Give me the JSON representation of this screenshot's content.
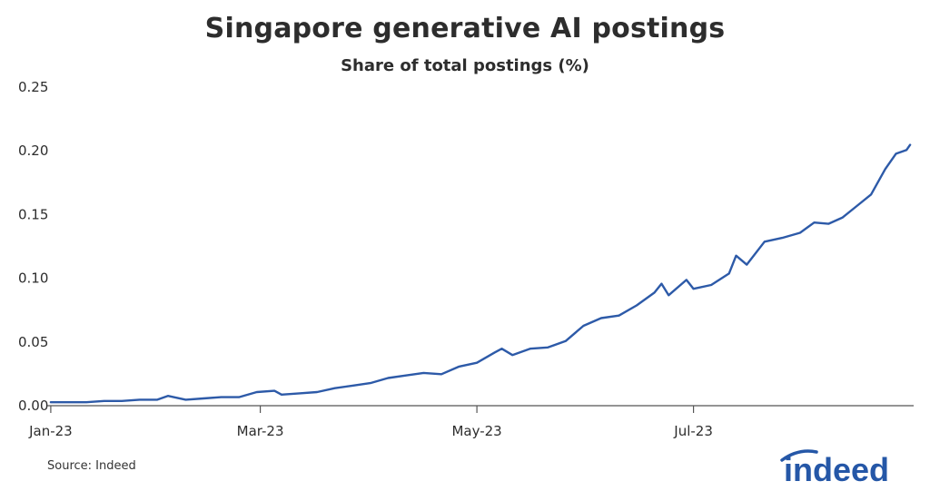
{
  "title": "Singapore generative AI postings",
  "subtitle": "Share of total postings (%)",
  "source": "Source: Indeed",
  "logo_text": "indeed",
  "colors": {
    "line": "#2d5aa8",
    "brand": "#2557a7",
    "axis": "#555555",
    "text": "#2d2d2d"
  },
  "chart_data": {
    "type": "line",
    "x_start": "2023-01-01",
    "x_end": "2023-08-31",
    "xlim": [
      "2022-12-31",
      "2023-09-01"
    ],
    "ylim": [
      0,
      0.25
    ],
    "y_ticks": [
      "0.00",
      "0.05",
      "0.10",
      "0.15",
      "0.20",
      "0.25"
    ],
    "y_tick_values": [
      0,
      0.05,
      0.1,
      0.15,
      0.2,
      0.25
    ],
    "x_ticks": [
      {
        "label": "Jan-23",
        "date": "2023-01-01"
      },
      {
        "label": "Mar-23",
        "date": "2023-03-01"
      },
      {
        "label": "May-23",
        "date": "2023-05-01"
      },
      {
        "label": "Jul-23",
        "date": "2023-07-01"
      }
    ],
    "grid": false,
    "series": [
      {
        "points": [
          [
            "2023-01-01",
            0.002
          ],
          [
            "2023-01-06",
            0.002
          ],
          [
            "2023-01-11",
            0.002
          ],
          [
            "2023-01-16",
            0.003
          ],
          [
            "2023-01-21",
            0.003
          ],
          [
            "2023-01-26",
            0.004
          ],
          [
            "2023-01-31",
            0.004
          ],
          [
            "2023-02-03",
            0.007
          ],
          [
            "2023-02-08",
            0.004
          ],
          [
            "2023-02-13",
            0.005
          ],
          [
            "2023-02-18",
            0.006
          ],
          [
            "2023-02-23",
            0.006
          ],
          [
            "2023-02-28",
            0.01
          ],
          [
            "2023-03-05",
            0.011
          ],
          [
            "2023-03-07",
            0.008
          ],
          [
            "2023-03-12",
            0.009
          ],
          [
            "2023-03-17",
            0.01
          ],
          [
            "2023-03-22",
            0.013
          ],
          [
            "2023-03-27",
            0.015
          ],
          [
            "2023-04-01",
            0.017
          ],
          [
            "2023-04-06",
            0.021
          ],
          [
            "2023-04-11",
            0.023
          ],
          [
            "2023-04-16",
            0.025
          ],
          [
            "2023-04-21",
            0.024
          ],
          [
            "2023-04-26",
            0.03
          ],
          [
            "2023-05-01",
            0.033
          ],
          [
            "2023-05-06",
            0.041
          ],
          [
            "2023-05-08",
            0.044
          ],
          [
            "2023-05-11",
            0.039
          ],
          [
            "2023-05-16",
            0.044
          ],
          [
            "2023-05-21",
            0.045
          ],
          [
            "2023-05-26",
            0.05
          ],
          [
            "2023-05-31",
            0.062
          ],
          [
            "2023-06-05",
            0.068
          ],
          [
            "2023-06-10",
            0.07
          ],
          [
            "2023-06-15",
            0.078
          ],
          [
            "2023-06-20",
            0.088
          ],
          [
            "2023-06-22",
            0.095
          ],
          [
            "2023-06-24",
            0.086
          ],
          [
            "2023-06-29",
            0.098
          ],
          [
            "2023-07-01",
            0.091
          ],
          [
            "2023-07-06",
            0.094
          ],
          [
            "2023-07-11",
            0.103
          ],
          [
            "2023-07-13",
            0.117
          ],
          [
            "2023-07-16",
            0.11
          ],
          [
            "2023-07-21",
            0.128
          ],
          [
            "2023-07-26",
            0.131
          ],
          [
            "2023-07-31",
            0.135
          ],
          [
            "2023-08-04",
            0.143
          ],
          [
            "2023-08-08",
            0.142
          ],
          [
            "2023-08-12",
            0.147
          ],
          [
            "2023-08-16",
            0.156
          ],
          [
            "2023-08-20",
            0.165
          ],
          [
            "2023-08-24",
            0.185
          ],
          [
            "2023-08-27",
            0.197
          ],
          [
            "2023-08-30",
            0.2
          ],
          [
            "2023-08-31",
            0.204
          ]
        ]
      }
    ]
  }
}
